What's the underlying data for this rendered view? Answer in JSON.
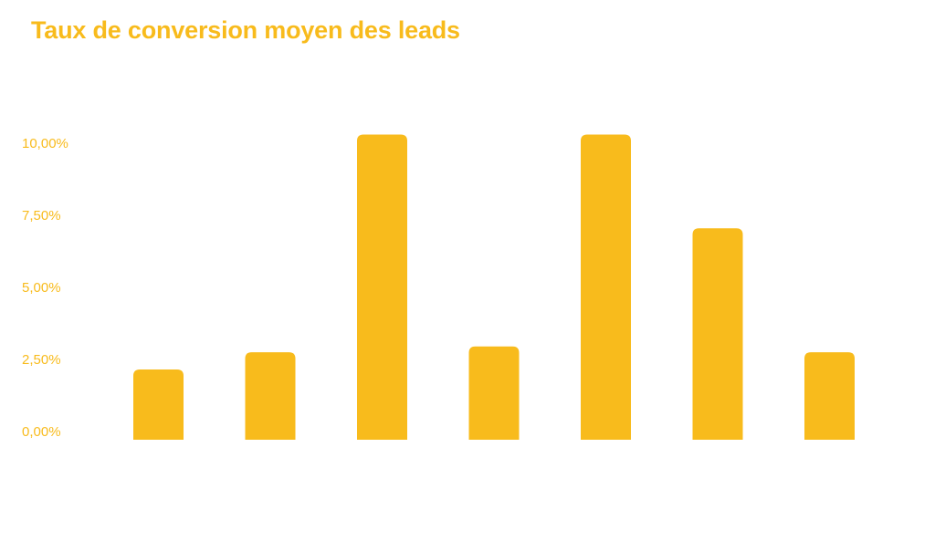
{
  "colors": {
    "accent": "#F8BB1C",
    "background": "#FFFFFF"
  },
  "chart_data": {
    "type": "bar",
    "title": "Taux de conversion moyen des leads",
    "xlabel": "",
    "ylabel": "",
    "categories": [
      "",
      "",
      "",
      "",
      "",
      "",
      ""
    ],
    "values": [
      2.15,
      2.75,
      10.3,
      2.95,
      10.3,
      7.05,
      2.75
    ],
    "ylim": [
      0,
      10
    ],
    "yticks": [
      0,
      2.5,
      5,
      7.5,
      10
    ],
    "ytick_labels": [
      "0,00%",
      "2,50%",
      "5,00%",
      "7,50%",
      "10,00%"
    ],
    "grid": false,
    "legend": "none",
    "bar_color": "#F8BB1C"
  }
}
